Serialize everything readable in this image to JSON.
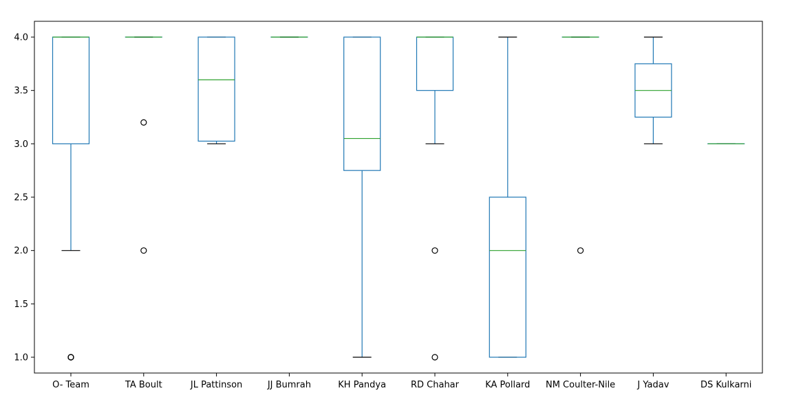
{
  "chart_data": {
    "type": "box",
    "title": "",
    "xlabel": "",
    "ylabel": "",
    "ylim": [
      0.85,
      4.15
    ],
    "yticks": [
      "1.0",
      "1.5",
      "2.0",
      "2.5",
      "3.0",
      "3.5",
      "4.0"
    ],
    "grid": false,
    "legend": "none",
    "colors": {
      "box": "#1f77b4",
      "median": "#2ca02c",
      "whisker_cap": "#000000",
      "flier": "#000000"
    },
    "categories": [
      "O- Team",
      "TA Boult",
      "JL Pattinson",
      "JJ Bumrah",
      "KH Pandya",
      "RD Chahar",
      "KA Pollard",
      "NM Coulter-Nile",
      "J Yadav",
      "DS Kulkarni"
    ],
    "boxes": [
      {
        "label": "O- Team",
        "whislo": 2.0,
        "q1": 3.0,
        "med": 4.0,
        "q3": 4.0,
        "whishi": 4.0,
        "fliers": [
          1.0,
          1.0,
          1.0
        ]
      },
      {
        "label": "TA Boult",
        "whislo": 4.0,
        "q1": 4.0,
        "med": 4.0,
        "q3": 4.0,
        "whishi": 4.0,
        "fliers": [
          3.2,
          2.0
        ]
      },
      {
        "label": "JL Pattinson",
        "whislo": 3.0,
        "q1": 3.025,
        "med": 3.6,
        "q3": 4.0,
        "whishi": 4.0,
        "fliers": []
      },
      {
        "label": "JJ Bumrah",
        "whislo": 4.0,
        "q1": 4.0,
        "med": 4.0,
        "q3": 4.0,
        "whishi": 4.0,
        "fliers": []
      },
      {
        "label": "KH Pandya",
        "whislo": 1.0,
        "q1": 2.75,
        "med": 3.05,
        "q3": 4.0,
        "whishi": 4.0,
        "fliers": []
      },
      {
        "label": "RD Chahar",
        "whislo": 3.0,
        "q1": 3.5,
        "med": 4.0,
        "q3": 4.0,
        "whishi": 4.0,
        "fliers": [
          2.0,
          1.0
        ]
      },
      {
        "label": "KA Pollard",
        "whislo": 1.0,
        "q1": 1.0,
        "med": 2.0,
        "q3": 2.5,
        "whishi": 4.0,
        "fliers": []
      },
      {
        "label": "NM Coulter-Nile",
        "whislo": 4.0,
        "q1": 4.0,
        "med": 4.0,
        "q3": 4.0,
        "whishi": 4.0,
        "fliers": [
          2.0
        ]
      },
      {
        "label": "J Yadav",
        "whislo": 3.0,
        "q1": 3.25,
        "med": 3.5,
        "q3": 3.75,
        "whishi": 4.0,
        "fliers": []
      },
      {
        "label": "DS Kulkarni",
        "whislo": 3.0,
        "q1": 3.0,
        "med": 3.0,
        "q3": 3.0,
        "whishi": 3.0,
        "fliers": []
      }
    ]
  }
}
